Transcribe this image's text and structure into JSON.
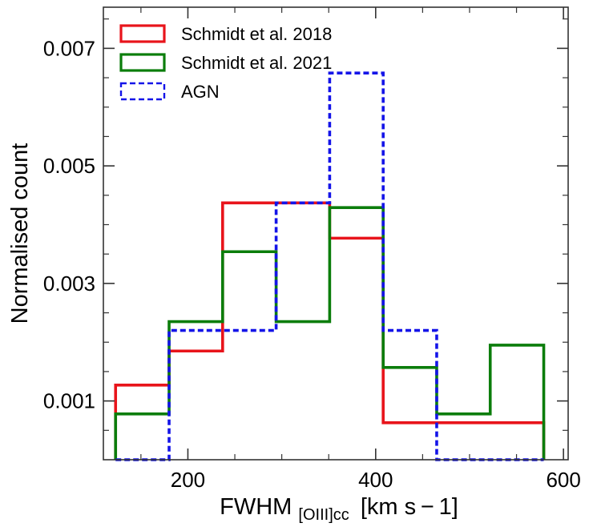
{
  "chart_data": {
    "type": "histogram",
    "xlabel": "FWHM",
    "xlabel_subscript": "[OIII]cc",
    "xlabel_units": "[km s − 1]",
    "ylabel": "Normalised count",
    "xlim": [
      110,
      605
    ],
    "ylim": [
      0,
      0.0077
    ],
    "xticks": [
      200,
      400,
      600
    ],
    "xtick_labels": [
      "200",
      "400",
      "600"
    ],
    "yticks": [
      0.001,
      0.003,
      0.005,
      0.007
    ],
    "ytick_labels": [
      "0.001",
      "0.003",
      "0.005",
      "0.007"
    ],
    "bin_edges": [
      123,
      180,
      237,
      294,
      351,
      408,
      465,
      522,
      579
    ],
    "series": [
      {
        "name": "Schmidt et al. 2018",
        "color": "#e8141b",
        "style": "solid",
        "values": [
          0.00127,
          0.00185,
          0.00437,
          0.00437,
          0.00377,
          0.00063,
          0.00063,
          0.00063
        ]
      },
      {
        "name": "Schmidt et al. 2021",
        "color": "#0b7d0b",
        "style": "solid",
        "values": [
          0.00078,
          0.00235,
          0.00354,
          0.00235,
          0.00429,
          0.00157,
          0.00078,
          0.00195
        ]
      },
      {
        "name": "AGN",
        "color": "#1414e8",
        "style": "dashed",
        "values": [
          0.0,
          0.0022,
          0.0022,
          0.00437,
          0.00658,
          0.0022,
          0.0,
          0.0
        ]
      }
    ],
    "legend_position": "top-left"
  }
}
